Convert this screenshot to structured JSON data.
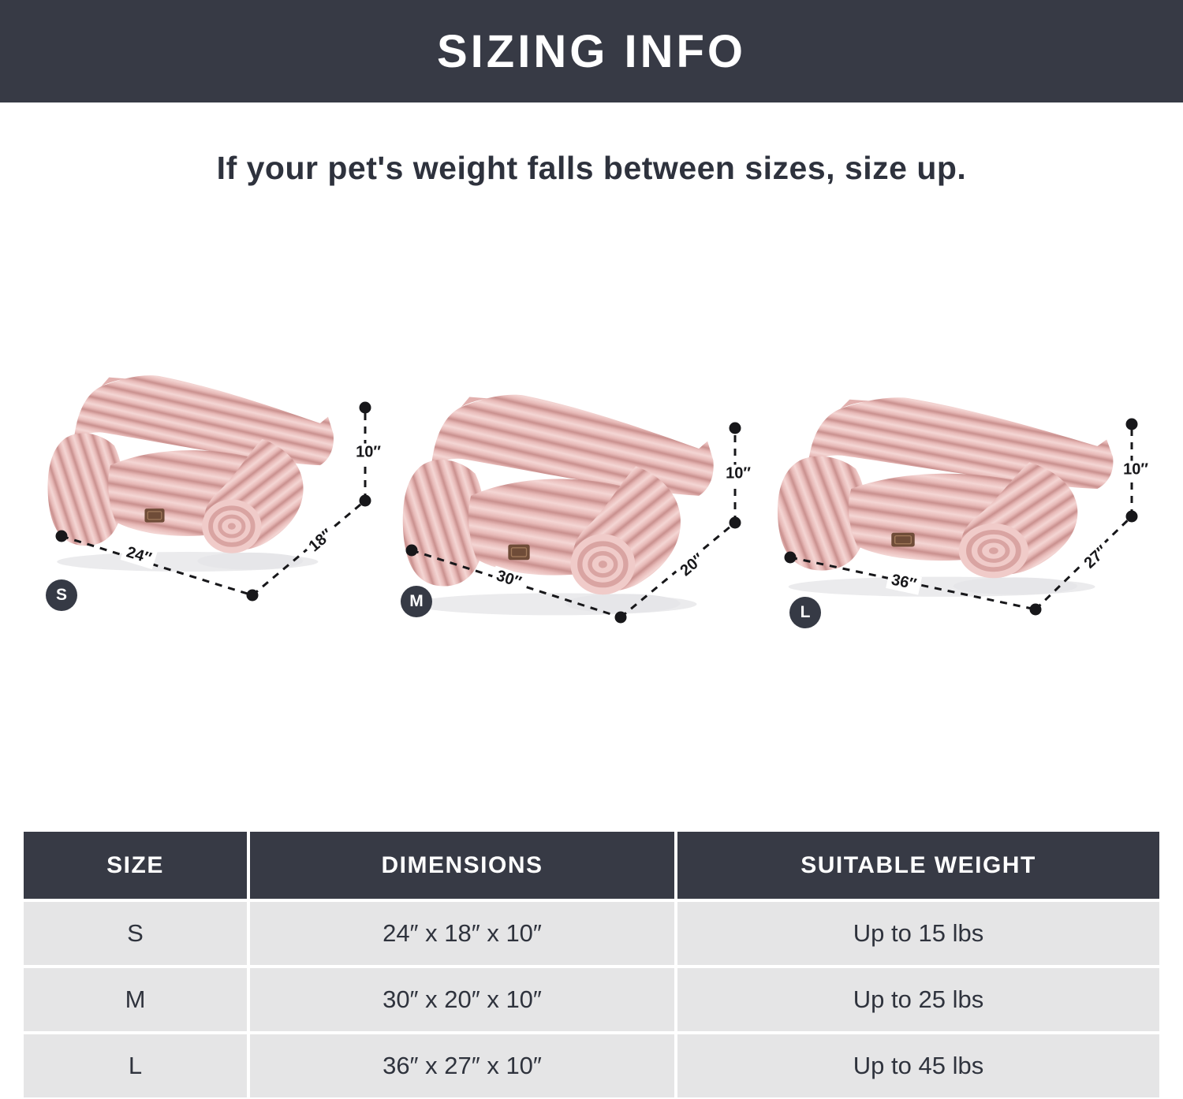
{
  "header": {
    "title": "SIZING INFO"
  },
  "subtitle": "If your pet's weight falls between sizes, size up.",
  "figures": [
    {
      "badge": "S",
      "width_label": "24″",
      "depth_label": "18″",
      "height_label": "10″"
    },
    {
      "badge": "M",
      "width_label": "30″",
      "depth_label": "20″",
      "height_label": "10″"
    },
    {
      "badge": "L",
      "width_label": "36″",
      "depth_label": "27″",
      "height_label": "10″"
    }
  ],
  "table": {
    "headers": [
      "SIZE",
      "DIMENSIONS",
      "SUITABLE WEIGHT"
    ],
    "rows": [
      {
        "size": "S",
        "dimensions": "24″ x 18″ x 10″",
        "weight": "Up to 15 lbs"
      },
      {
        "size": "M",
        "dimensions": "30″ x 20″ x 10″",
        "weight": "Up to 25 lbs"
      },
      {
        "size": "L",
        "dimensions": "36″ x 27″ x 10″",
        "weight": "Up to 45 lbs"
      }
    ]
  },
  "colors": {
    "banner_dark": "#373a45",
    "table_row_gray": "#e5e5e6",
    "text_dark": "#2e323d",
    "bed_pink_light": "#f4d6d4",
    "bed_pink_mid": "#e7b9b7",
    "bed_pink_dark": "#c9908e",
    "tag_brown": "#6f4c38",
    "dimension_line": "#17171a"
  }
}
